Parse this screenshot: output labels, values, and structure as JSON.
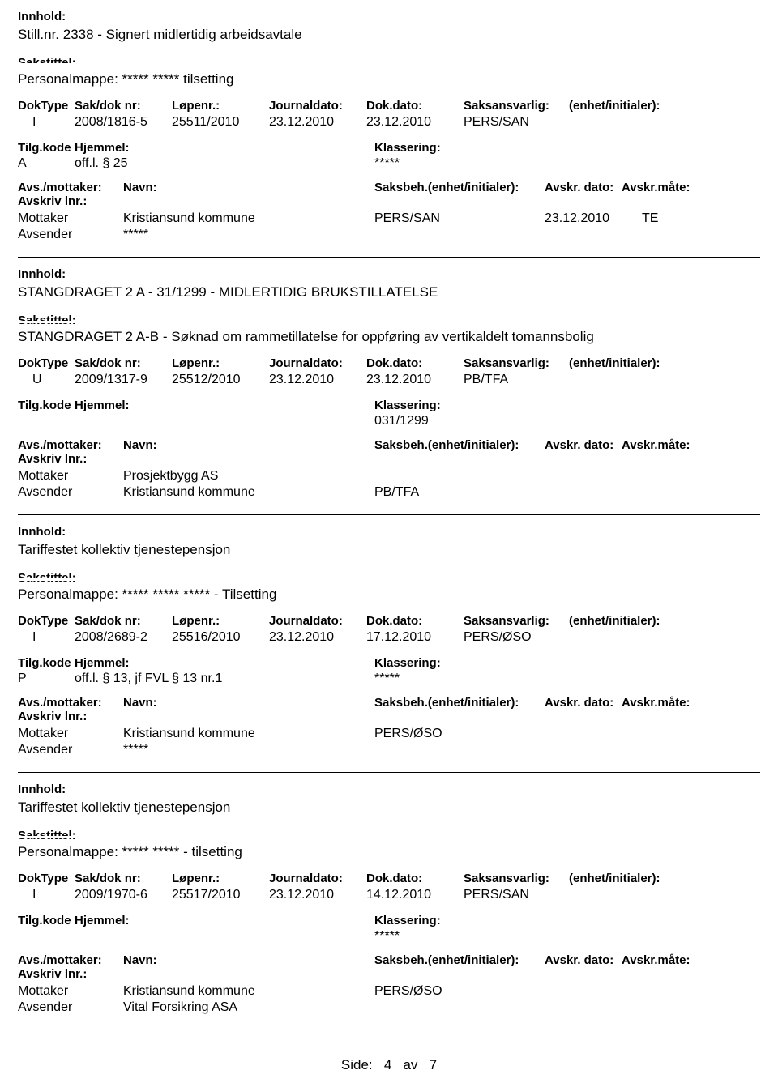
{
  "labels": {
    "innhold": "Innhold:",
    "sakstittel": "Sakstittel:",
    "doktype": "DokType",
    "sakdok": "Sak/dok nr:",
    "lopenr": "Løpenr.:",
    "journaldato": "Journaldato:",
    "dokdato": "Dok.dato:",
    "saksansvarlig": "Saksansvarlig:",
    "enhet": "(enhet/initialer):",
    "tilgkode": "Tilg.kode",
    "hjemmel": "Hjemmel:",
    "klassering": "Klassering:",
    "avsmottaker": "Avs./mottaker:",
    "navn": "Navn:",
    "saksbeh": "Saksbeh.(enhet/initialer):",
    "avskrdato": "Avskr. dato:",
    "avskrmate": "Avskr.måte:",
    "avskrivlnr": "Avskriv lnr.:",
    "mottaker": "Mottaker",
    "avsender": "Avsender"
  },
  "footer": {
    "label": "Side:",
    "page": "4",
    "sep": "av",
    "total": "7"
  },
  "records": [
    {
      "title": "Still.nr. 2338 - Signert midlertidig arbeidsavtale",
      "sakstittel": "Personalmappe: ***** ***** tilsetting",
      "doktype": "I",
      "sakdok": "2008/1816-5",
      "lopenr": "25511/2010",
      "jdato": "23.12.2010",
      "ddato": "23.12.2010",
      "saksansv": "PERS/SAN",
      "tilgkode": "A",
      "hjemmel": "off.l. § 25",
      "klassering": "*****",
      "parties": [
        {
          "role": "Mottaker",
          "name": "Kristiansund kommune",
          "beh": "PERS/SAN",
          "avskrdato": "23.12.2010",
          "avskrmate": "TE"
        },
        {
          "role": "Avsender",
          "name": "*****",
          "beh": "",
          "avskrdato": "",
          "avskrmate": ""
        }
      ]
    },
    {
      "title": "STANGDRAGET 2 A - 31/1299 - MIDLERTIDIG BRUKSTILLATELSE",
      "sakstittel": "STANGDRAGET 2 A-B - Søknad om rammetillatelse for oppføring av vertikaldelt tomannsbolig",
      "doktype": "U",
      "sakdok": "2009/1317-9",
      "lopenr": "25512/2010",
      "jdato": "23.12.2010",
      "ddato": "23.12.2010",
      "saksansv": "PB/TFA",
      "tilgkode": "",
      "hjemmel": "",
      "klassering": "031/1299",
      "parties": [
        {
          "role": "Mottaker",
          "name": "Prosjektbygg AS",
          "beh": "",
          "avskrdato": "",
          "avskrmate": ""
        },
        {
          "role": "Avsender",
          "name": "Kristiansund kommune",
          "beh": "PB/TFA",
          "avskrdato": "",
          "avskrmate": ""
        }
      ]
    },
    {
      "title": "Tariffestet kollektiv tjenestepensjon",
      "sakstittel": "Personalmappe: ***** ***** ***** - Tilsetting",
      "doktype": "I",
      "sakdok": "2008/2689-2",
      "lopenr": "25516/2010",
      "jdato": "23.12.2010",
      "ddato": "17.12.2010",
      "saksansv": "PERS/ØSO",
      "tilgkode": "P",
      "hjemmel": "off.l. § 13, jf FVL § 13 nr.1",
      "klassering": "*****",
      "parties": [
        {
          "role": "Mottaker",
          "name": "Kristiansund kommune",
          "beh": "PERS/ØSO",
          "avskrdato": "",
          "avskrmate": ""
        },
        {
          "role": "Avsender",
          "name": "*****",
          "beh": "",
          "avskrdato": "",
          "avskrmate": ""
        }
      ]
    },
    {
      "title": "Tariffestet kollektiv tjenestepensjon",
      "sakstittel": "Personalmappe: ***** ***** - tilsetting",
      "doktype": "I",
      "sakdok": "2009/1970-6",
      "lopenr": "25517/2010",
      "jdato": "23.12.2010",
      "ddato": "14.12.2010",
      "saksansv": "PERS/SAN",
      "tilgkode": "",
      "hjemmel": "",
      "klassering": "*****",
      "parties": [
        {
          "role": "Mottaker",
          "name": "Kristiansund kommune",
          "beh": "PERS/ØSO",
          "avskrdato": "",
          "avskrmate": ""
        },
        {
          "role": "Avsender",
          "name": "Vital Forsikring ASA",
          "beh": "",
          "avskrdato": "",
          "avskrmate": ""
        }
      ]
    }
  ]
}
